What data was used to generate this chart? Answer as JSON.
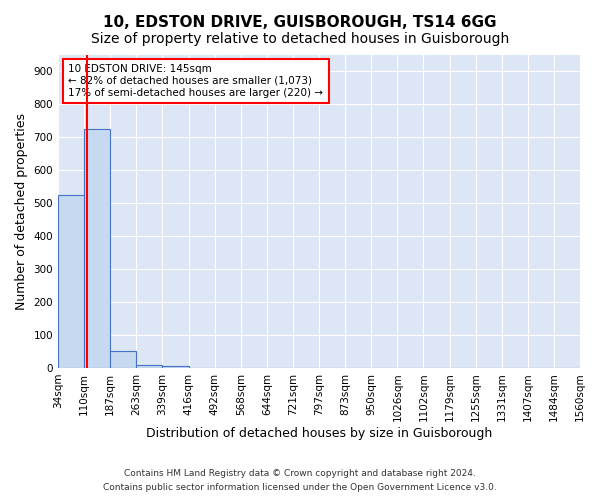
{
  "title": "10, EDSTON DRIVE, GUISBOROUGH, TS14 6GG",
  "subtitle": "Size of property relative to detached houses in Guisborough",
  "xlabel": "Distribution of detached houses by size in Guisborough",
  "ylabel": "Number of detached properties",
  "footnote1": "Contains HM Land Registry data © Crown copyright and database right 2024.",
  "footnote2": "Contains public sector information licensed under the Open Government Licence v3.0.",
  "bin_labels": [
    "34sqm",
    "110sqm",
    "187sqm",
    "263sqm",
    "339sqm",
    "416sqm",
    "492sqm",
    "568sqm",
    "644sqm",
    "721sqm",
    "797sqm",
    "873sqm",
    "950sqm",
    "1026sqm",
    "1102sqm",
    "1179sqm",
    "1255sqm",
    "1331sqm",
    "1407sqm",
    "1484sqm",
    "1560sqm"
  ],
  "bar_values": [
    525,
    725,
    50,
    10,
    5,
    0,
    0,
    0,
    0,
    0,
    0,
    0,
    0,
    0,
    0,
    0,
    0,
    0,
    0,
    0
  ],
  "bar_color": "#c6d9f0",
  "bar_edge_color": "#4472c4",
  "property_line_x": 1.5,
  "annotation_text": "10 EDSTON DRIVE: 145sqm\n← 82% of detached houses are smaller (1,073)\n17% of semi-detached houses are larger (220) →",
  "annotation_box_color": "white",
  "annotation_box_edge_color": "red",
  "property_line_color": "red",
  "ylim": [
    0,
    950
  ],
  "yticks": [
    0,
    100,
    200,
    300,
    400,
    500,
    600,
    700,
    800,
    900
  ],
  "bg_color": "#dce6f5",
  "grid_color": "white",
  "title_fontsize": 11,
  "subtitle_fontsize": 10,
  "tick_fontsize": 7.5,
  "ylabel_fontsize": 9,
  "footnote_fontsize": 6.5
}
